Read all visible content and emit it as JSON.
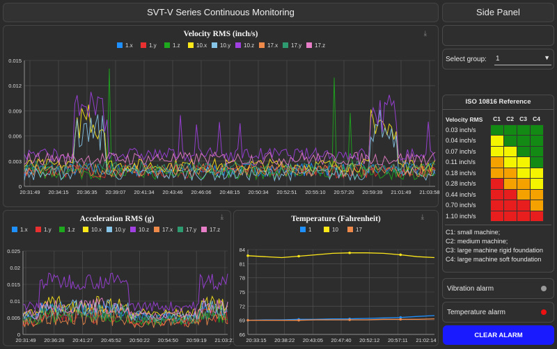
{
  "header": {
    "title": "SVT-V Series Continuous Monitoring"
  },
  "side": {
    "title": "Side Panel",
    "select_label": "Select group:",
    "select_value": "1",
    "iso_title": "ISO 10816 Reference",
    "iso_header": [
      "Velocity RMS",
      "C1",
      "C2",
      "C3",
      "C4"
    ],
    "iso_rows": [
      {
        "label": "0.03 inch/s",
        "cells": [
          "green",
          "green",
          "green",
          "green"
        ]
      },
      {
        "label": "0.04 inch/s",
        "cells": [
          "yellow",
          "green",
          "green",
          "green"
        ]
      },
      {
        "label": "0.07 inch/s",
        "cells": [
          "yellow",
          "yellow",
          "green",
          "green"
        ]
      },
      {
        "label": "0.11 inch/s",
        "cells": [
          "orange",
          "yellow",
          "yellow",
          "green"
        ]
      },
      {
        "label": "0.18 inch/s",
        "cells": [
          "orange",
          "orange",
          "yellow",
          "yellow"
        ]
      },
      {
        "label": "0.28 inch/s",
        "cells": [
          "red",
          "orange",
          "orange",
          "yellow"
        ]
      },
      {
        "label": "0.44 inch/s",
        "cells": [
          "red",
          "red",
          "orange",
          "orange"
        ]
      },
      {
        "label": "0.70 inch/s",
        "cells": [
          "red",
          "red",
          "red",
          "orange"
        ]
      },
      {
        "label": "1.10 inch/s",
        "cells": [
          "red",
          "red",
          "red",
          "red"
        ]
      }
    ],
    "iso_colors": {
      "green": "#138a13",
      "yellow": "#f4f400",
      "orange": "#f5a100",
      "red": "#e81d1d"
    },
    "notes": [
      "C1: small machine;",
      "C2: medium machine;",
      "C3: large machine rigid foundation",
      "C4: large machine soft foundation"
    ],
    "vibration_alarm": "Vibration alarm",
    "temperature_alarm": "Temperature alarm",
    "clear_alarm": "CLEAR ALARM",
    "vibration_alarm_color": "#9a9a9a",
    "temperature_alarm_color": "#ee1111"
  },
  "chart_data": [
    {
      "type": "line",
      "title": "Velocity RMS (inch/s)",
      "legend": [
        "1.x",
        "1.y",
        "1.z",
        "10.x",
        "10.y",
        "10.z",
        "17.x",
        "17.y",
        "17.z"
      ],
      "colors": [
        "#1e90ff",
        "#e83030",
        "#1ea81e",
        "#ffe81a",
        "#86c5e8",
        "#a040e0",
        "#f08a4a",
        "#2e9a70",
        "#e87ec8"
      ],
      "x_ticks": [
        "20:31:49",
        "20:34:15",
        "20:36:35",
        "20:39:07",
        "20:41:34",
        "20:43:46",
        "20:46:06",
        "20:48:15",
        "20:50:34",
        "20:52:51",
        "20:55:10",
        "20:57:20",
        "20:59:39",
        "21:01:49",
        "21:03:58"
      ],
      "y_ticks": [
        "0",
        "0.003",
        "0.006",
        "0.009",
        "0.012",
        "0.015"
      ],
      "ylim": [
        0,
        0.015
      ]
    },
    {
      "type": "line",
      "title": "Acceleration RMS (g)",
      "legend": [
        "1.x",
        "1.y",
        "1.z",
        "10.x",
        "10.y",
        "10.z",
        "17.x",
        "17.y",
        "17.z"
      ],
      "colors": [
        "#1e90ff",
        "#e83030",
        "#1ea81e",
        "#ffe81a",
        "#86c5e8",
        "#a040e0",
        "#f08a4a",
        "#2e9a70",
        "#e87ec8"
      ],
      "x_ticks": [
        "20:31:49",
        "20:36:28",
        "20:41:27",
        "20:45:52",
        "20:50:22",
        "20:54:50",
        "20:59:19",
        "21:03:21"
      ],
      "y_ticks": [
        "0",
        "0.005",
        "0.01",
        "0.015",
        "0.02",
        "0.025"
      ],
      "ylim": [
        0,
        0.025
      ]
    },
    {
      "type": "line",
      "title": "Temperature (Fahrenheit)",
      "legend": [
        "1",
        "10",
        "17"
      ],
      "colors": [
        "#1e90ff",
        "#ffe81a",
        "#f08a4a"
      ],
      "x_ticks": [
        "20:33:15",
        "20:38:22",
        "20:43:05",
        "20:47:40",
        "20:52:12",
        "20:57:11",
        "21:02:14"
      ],
      "y_ticks": [
        "66",
        "69",
        "72",
        "75",
        "78",
        "81",
        "84"
      ],
      "ylim": [
        66,
        84
      ],
      "series": [
        {
          "name": "1",
          "values": [
            69.0,
            69.1,
            69.1,
            69.2,
            69.2,
            69.3,
            69.3,
            69.4,
            69.5,
            69.6,
            69.8,
            70.0
          ]
        },
        {
          "name": "10",
          "values": [
            82.7,
            82.5,
            82.3,
            82.6,
            82.9,
            83.2,
            83.3,
            83.3,
            83.2,
            82.9,
            82.5,
            82.3
          ]
        },
        {
          "name": "17",
          "values": [
            69.0,
            69.0,
            69.0,
            69.0,
            69.1,
            69.1,
            69.1,
            69.1,
            69.2,
            69.2,
            69.2,
            69.3
          ]
        }
      ]
    }
  ]
}
